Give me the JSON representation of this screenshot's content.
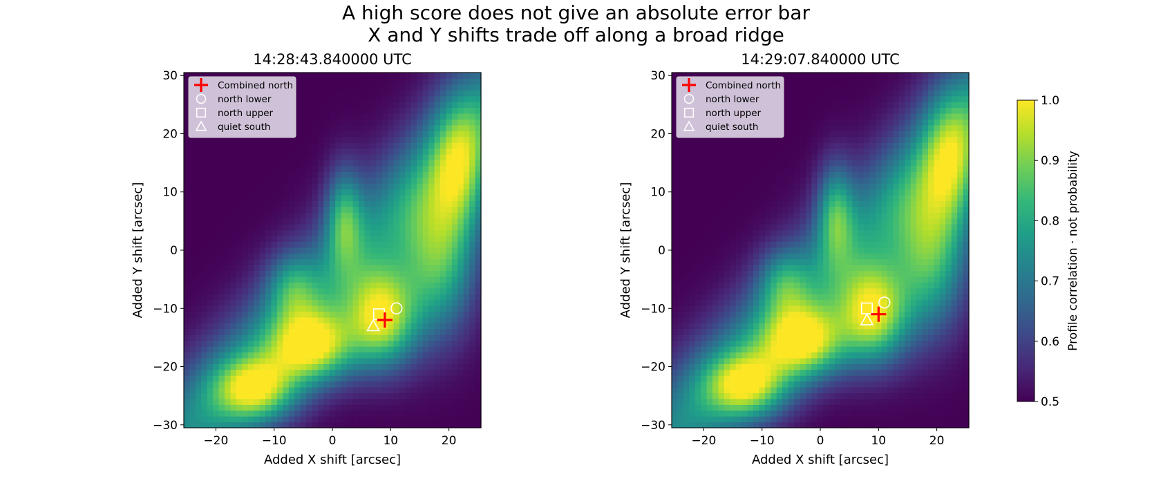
{
  "figure": {
    "title_line1": "A high score does not give an absolute error bar",
    "title_line2": "X and Y shifts trade off along a broad ridge"
  },
  "chart_data": [
    {
      "type": "heatmap",
      "title": "14:28:43.840000 UTC",
      "xlabel": "Added X shift [arcsec]",
      "ylabel": "Added Y shift [arcsec]",
      "xlim": [
        -25.5,
        25.5
      ],
      "ylim": [
        -30.5,
        30.5
      ],
      "xticks": [
        -20,
        -10,
        0,
        10,
        20
      ],
      "yticks": [
        -30,
        -20,
        -10,
        0,
        10,
        20,
        30
      ],
      "colormap": "viridis",
      "grid": false,
      "legend_position": "upper-left",
      "markers": [
        {
          "label": "Combined north",
          "symbol": "plus",
          "color": "#ff0000",
          "x": 9,
          "y": -12
        },
        {
          "label": "north lower",
          "symbol": "circle",
          "color": "#ffffff",
          "x": 11,
          "y": -10
        },
        {
          "label": "north upper",
          "symbol": "square",
          "color": "#ffffff",
          "x": 8,
          "y": -11
        },
        {
          "label": "quiet south",
          "symbol": "triangle",
          "color": "#ffffff",
          "x": 7,
          "y": -13
        }
      ]
    },
    {
      "type": "heatmap",
      "title": "14:29:07.840000 UTC",
      "xlabel": "Added X shift [arcsec]",
      "ylabel": "Added Y shift [arcsec]",
      "xlim": [
        -25.5,
        25.5
      ],
      "ylim": [
        -30.5,
        30.5
      ],
      "xticks": [
        -20,
        -10,
        0,
        10,
        20
      ],
      "yticks": [
        -30,
        -20,
        -10,
        0,
        10,
        20,
        30
      ],
      "colormap": "viridis",
      "grid": false,
      "legend_position": "upper-left",
      "markers": [
        {
          "label": "Combined north",
          "symbol": "plus",
          "color": "#ff0000",
          "x": 10,
          "y": -11
        },
        {
          "label": "north lower",
          "symbol": "circle",
          "color": "#ffffff",
          "x": 11,
          "y": -9
        },
        {
          "label": "north upper",
          "symbol": "square",
          "color": "#ffffff",
          "x": 8,
          "y": -10
        },
        {
          "label": "quiet south",
          "symbol": "triangle",
          "color": "#ffffff",
          "x": 8,
          "y": -12
        }
      ]
    }
  ],
  "colorbar": {
    "label": "Profile correlation · not probability",
    "range": [
      0.5,
      1.0
    ],
    "ticks": [
      0.5,
      0.6,
      0.7,
      0.8,
      0.9,
      1.0
    ]
  },
  "colors": {
    "viridis": [
      "#440154",
      "#482878",
      "#3e4989",
      "#31688e",
      "#26828e",
      "#1f9e89",
      "#35b779",
      "#6ece58",
      "#b5de2b",
      "#fde725"
    ],
    "legend_bg": "#e8e4f0"
  }
}
